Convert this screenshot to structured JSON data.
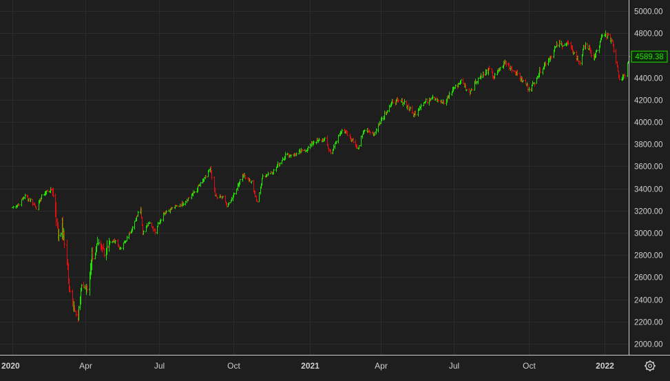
{
  "colors": {
    "background": "#1e1e1e",
    "grid": "#2b2b2b",
    "axis_text": "#d0d0d0",
    "up": "#22e000",
    "down": "#e01010",
    "price_badge_bg": "#0e2a0c",
    "price_badge_border": "#22e000",
    "price_badge_text": "#22e000"
  },
  "icons": {
    "settings": "gear-icon"
  },
  "chart_data": {
    "type": "line",
    "style": "ohlc-bars",
    "ylim": [
      1900,
      5100
    ],
    "yticks": [
      "5000.00",
      "4800.00",
      "4600.00",
      "4400.00",
      "4200.00",
      "4000.00",
      "3800.00",
      "3600.00",
      "3400.00",
      "3200.00",
      "3000.00",
      "2800.00",
      "2600.00",
      "2400.00",
      "2200.00",
      "2000.00"
    ],
    "xticks": [
      {
        "label": "2020",
        "date": "2020-01-02",
        "bold": true
      },
      {
        "label": "Apr",
        "date": "2020-04-01",
        "bold": false
      },
      {
        "label": "Jul",
        "date": "2020-07-01",
        "bold": false
      },
      {
        "label": "Oct",
        "date": "2020-10-01",
        "bold": false
      },
      {
        "label": "2021",
        "date": "2021-01-04",
        "bold": true
      },
      {
        "label": "Apr",
        "date": "2021-04-01",
        "bold": false
      },
      {
        "label": "Jul",
        "date": "2021-07-01",
        "bold": false
      },
      {
        "label": "Oct",
        "date": "2021-10-01",
        "bold": false
      },
      {
        "label": "2022",
        "date": "2022-01-03",
        "bold": true
      }
    ],
    "grid": true,
    "last_price": 4589.38,
    "last_price_label": "4589.38",
    "closes": [
      [
        "2020-01-02",
        3230
      ],
      [
        "2020-01-10",
        3265
      ],
      [
        "2020-01-17",
        3330
      ],
      [
        "2020-01-24",
        3300
      ],
      [
        "2020-01-31",
        3225
      ],
      [
        "2020-02-07",
        3330
      ],
      [
        "2020-02-14",
        3380
      ],
      [
        "2020-02-19",
        3390
      ],
      [
        "2020-02-24",
        3225
      ],
      [
        "2020-02-27",
        2980
      ],
      [
        "2020-03-03",
        3050
      ],
      [
        "2020-03-09",
        2750
      ],
      [
        "2020-03-12",
        2480
      ],
      [
        "2020-03-16",
        2390
      ],
      [
        "2020-03-20",
        2300
      ],
      [
        "2020-03-23",
        2237
      ],
      [
        "2020-03-27",
        2540
      ],
      [
        "2020-04-03",
        2490
      ],
      [
        "2020-04-09",
        2790
      ],
      [
        "2020-04-17",
        2870
      ],
      [
        "2020-04-24",
        2840
      ],
      [
        "2020-04-30",
        2910
      ],
      [
        "2020-05-08",
        2930
      ],
      [
        "2020-05-14",
        2850
      ],
      [
        "2020-05-22",
        2950
      ],
      [
        "2020-05-29",
        3045
      ],
      [
        "2020-06-08",
        3230
      ],
      [
        "2020-06-11",
        3000
      ],
      [
        "2020-06-19",
        3100
      ],
      [
        "2020-06-26",
        3010
      ],
      [
        "2020-07-06",
        3180
      ],
      [
        "2020-07-17",
        3220
      ],
      [
        "2020-07-31",
        3270
      ],
      [
        "2020-08-14",
        3370
      ],
      [
        "2020-08-28",
        3505
      ],
      [
        "2020-09-02",
        3580
      ],
      [
        "2020-09-08",
        3330
      ],
      [
        "2020-09-18",
        3320
      ],
      [
        "2020-09-23",
        3240
      ],
      [
        "2020-10-02",
        3350
      ],
      [
        "2020-10-12",
        3535
      ],
      [
        "2020-10-23",
        3460
      ],
      [
        "2020-10-30",
        3270
      ],
      [
        "2020-11-06",
        3510
      ],
      [
        "2020-11-20",
        3560
      ],
      [
        "2020-12-04",
        3700
      ],
      [
        "2020-12-18",
        3710
      ],
      [
        "2020-12-31",
        3756
      ],
      [
        "2021-01-08",
        3825
      ],
      [
        "2021-01-22",
        3840
      ],
      [
        "2021-01-29",
        3715
      ],
      [
        "2021-02-12",
        3935
      ],
      [
        "2021-02-25",
        3830
      ],
      [
        "2021-03-04",
        3770
      ],
      [
        "2021-03-12",
        3940
      ],
      [
        "2021-03-24",
        3890
      ],
      [
        "2021-04-01",
        4020
      ],
      [
        "2021-04-16",
        4185
      ],
      [
        "2021-04-30",
        4180
      ],
      [
        "2021-05-12",
        4060
      ],
      [
        "2021-05-21",
        4155
      ],
      [
        "2021-06-04",
        4230
      ],
      [
        "2021-06-18",
        4165
      ],
      [
        "2021-06-30",
        4300
      ],
      [
        "2021-07-09",
        4370
      ],
      [
        "2021-07-19",
        4260
      ],
      [
        "2021-07-30",
        4395
      ],
      [
        "2021-08-13",
        4470
      ],
      [
        "2021-08-19",
        4405
      ],
      [
        "2021-09-02",
        4537
      ],
      [
        "2021-09-17",
        4430
      ],
      [
        "2021-09-30",
        4310
      ],
      [
        "2021-10-04",
        4300
      ],
      [
        "2021-10-15",
        4470
      ],
      [
        "2021-10-29",
        4605
      ],
      [
        "2021-11-05",
        4697
      ],
      [
        "2021-11-18",
        4705
      ],
      [
        "2021-11-30",
        4570
      ],
      [
        "2021-12-03",
        4538
      ],
      [
        "2021-12-10",
        4710
      ],
      [
        "2021-12-20",
        4570
      ],
      [
        "2021-12-31",
        4766
      ],
      [
        "2022-01-04",
        4793
      ],
      [
        "2022-01-12",
        4726
      ],
      [
        "2022-01-21",
        4398
      ],
      [
        "2022-01-24",
        4410
      ],
      [
        "2022-01-28",
        4432
      ],
      [
        "2022-02-02",
        4589.38
      ]
    ]
  }
}
